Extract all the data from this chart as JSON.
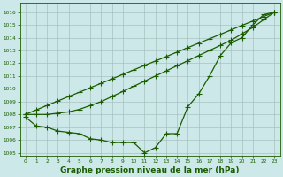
{
  "x": [
    0,
    1,
    2,
    3,
    4,
    5,
    6,
    7,
    8,
    9,
    10,
    11,
    12,
    13,
    14,
    15,
    16,
    17,
    18,
    19,
    20,
    21,
    22,
    23
  ],
  "line_straight1": [
    1008.0,
    1008.35,
    1008.7,
    1009.05,
    1009.4,
    1009.74,
    1010.09,
    1010.43,
    1010.78,
    1011.13,
    1011.48,
    1011.83,
    1012.17,
    1012.52,
    1012.87,
    1013.22,
    1013.57,
    1013.91,
    1014.26,
    1014.61,
    1014.96,
    1015.3,
    1015.65,
    1016.0
  ],
  "line_straight2": [
    1008.0,
    1008.0,
    1008.0,
    1008.1,
    1008.2,
    1008.4,
    1008.7,
    1009.0,
    1009.4,
    1009.8,
    1010.2,
    1010.6,
    1011.0,
    1011.4,
    1011.8,
    1012.2,
    1012.6,
    1013.0,
    1013.4,
    1013.8,
    1014.3,
    1014.8,
    1015.4,
    1016.0
  ],
  "line_observed": [
    1007.8,
    1007.1,
    1007.0,
    1006.7,
    1006.6,
    1006.5,
    1006.1,
    1006.0,
    1005.8,
    1005.8,
    1005.8,
    1005.0,
    1005.4,
    1006.5,
    1006.5,
    1008.6,
    1009.6,
    1011.0,
    1012.6,
    1013.6,
    1014.0,
    1015.0,
    1015.8,
    1016.0
  ],
  "bg_color": "#cce8e8",
  "line_color": "#1a5c00",
  "marker": "+",
  "marker_size": 4,
  "xlim": [
    -0.5,
    23.5
  ],
  "ylim": [
    1004.8,
    1016.7
  ],
  "yticks": [
    1005,
    1006,
    1007,
    1008,
    1009,
    1010,
    1011,
    1012,
    1013,
    1014,
    1015,
    1016
  ],
  "xticks": [
    0,
    1,
    2,
    3,
    4,
    5,
    6,
    7,
    8,
    9,
    10,
    11,
    12,
    13,
    14,
    15,
    16,
    17,
    18,
    19,
    20,
    21,
    22,
    23
  ],
  "xlabel": "Graphe pression niveau de la mer (hPa)",
  "grid_color": "#a0b8b8",
  "label_color": "#1a5c00"
}
